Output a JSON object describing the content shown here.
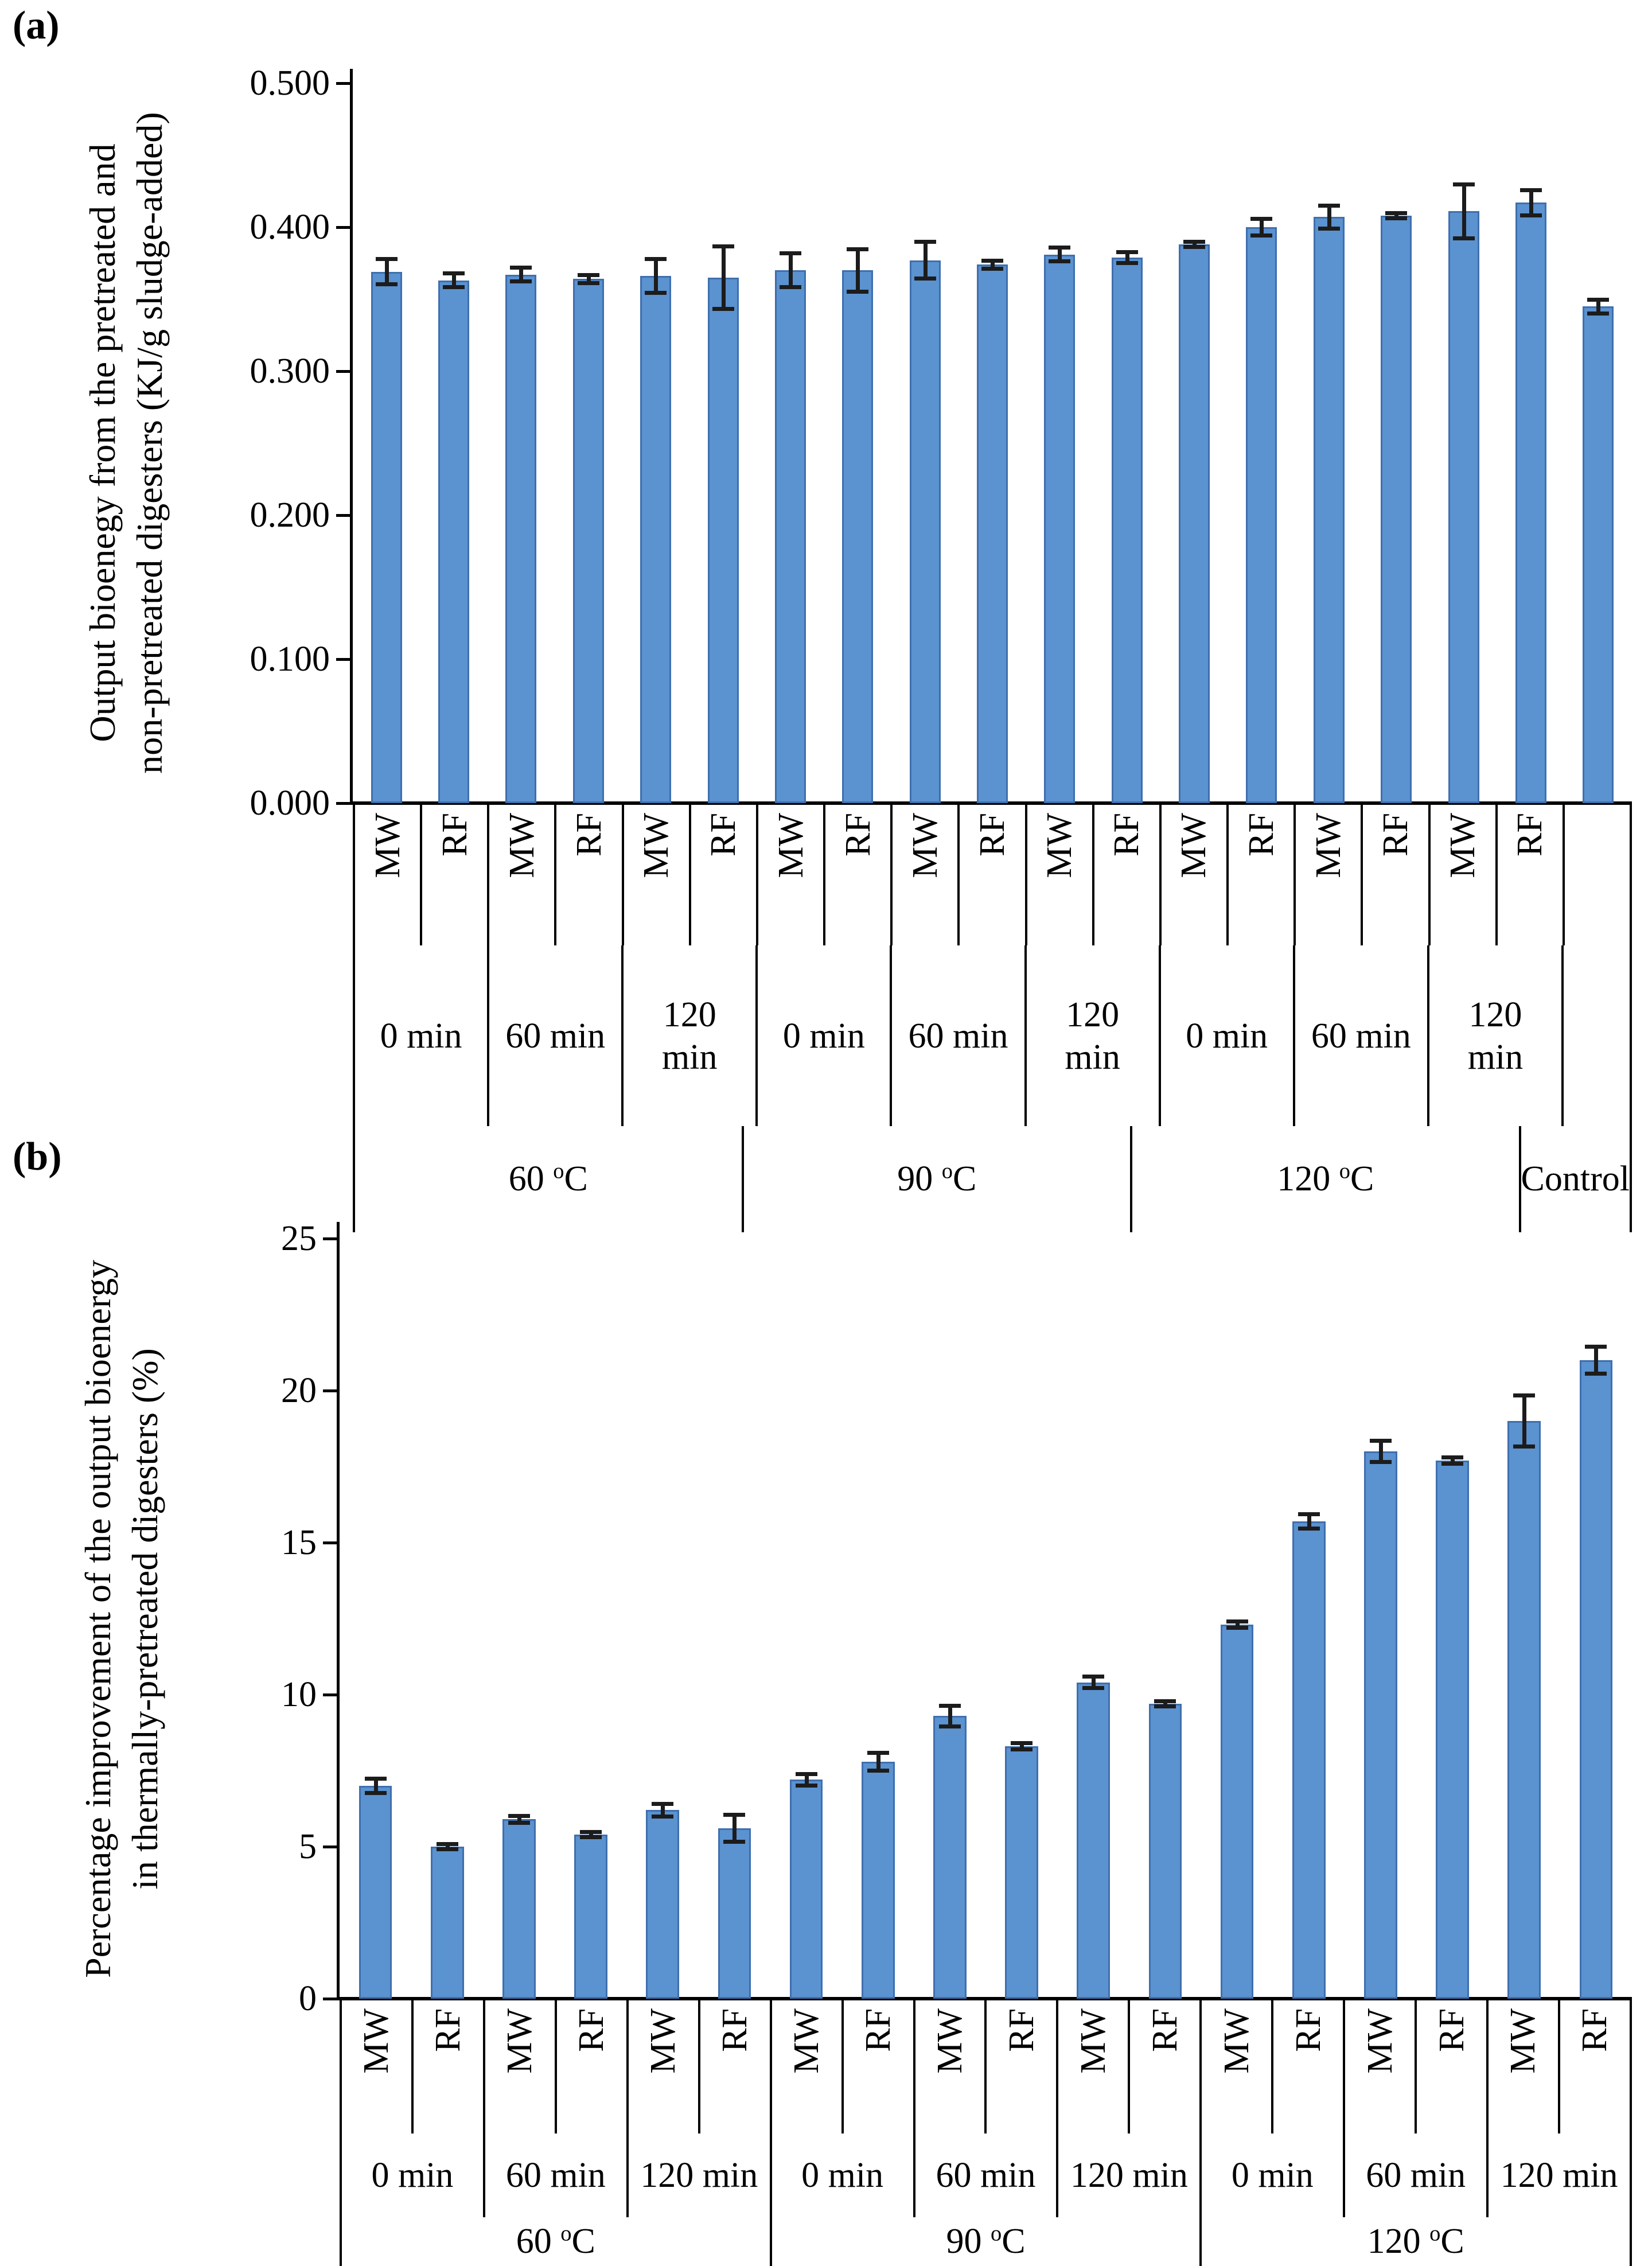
{
  "page": {
    "background": "#ffffff"
  },
  "colors": {
    "bar_fill": "#5b92d0",
    "bar_border": "#3f6fae",
    "axis": "#000000",
    "error_bar": "#1c1c1c",
    "text": "#000000"
  },
  "panel_a": {
    "label": "(a)"
  },
  "panel_b": {
    "label": "(b)"
  },
  "units": {
    "deg_sup": "o",
    "deg_c": "C"
  },
  "chart_data": [
    {
      "id": "a",
      "type": "bar",
      "panel": "(a)",
      "ylabel_lines": [
        "Output bioenegy from the pretreated and",
        "non-pretreated  digesters (KJ/g sludge-added)"
      ],
      "yticks": [
        "0.000",
        "0.100",
        "0.200",
        "0.300",
        "0.400",
        "0.500"
      ],
      "ylim": [
        0,
        0.5
      ],
      "grid": false,
      "legend": false,
      "temps": [
        "60",
        "90",
        "120"
      ],
      "times": [
        "0 min",
        "60 min",
        "120 min"
      ],
      "time_label_lines": [
        [
          "0 min"
        ],
        [
          "60 min"
        ],
        [
          "120",
          "min"
        ]
      ],
      "series_pair": [
        "MW",
        "RF"
      ],
      "control_label": "Control",
      "categories": [
        "60 °C 0 min MW",
        "60 °C 0 min RF",
        "60 °C 60 min MW",
        "60 °C 60 min RF",
        "60 °C 120 min MW",
        "60 °C 120 min RF",
        "90 °C 0 min MW",
        "90 °C 0 min RF",
        "90 °C 60 min MW",
        "90 °C 60 min RF",
        "90 °C 120 min MW",
        "90 °C 120 min RF",
        "120 °C 0 min MW",
        "120 °C 0 min RF",
        "120 °C 60 min MW",
        "120 °C 60 min RF",
        "120 °C 120 min MW",
        "120 °C 120 min RF",
        "Control"
      ],
      "values": [
        0.369,
        0.363,
        0.367,
        0.364,
        0.366,
        0.365,
        0.37,
        0.37,
        0.377,
        0.374,
        0.381,
        0.379,
        0.388,
        0.4,
        0.407,
        0.408,
        0.411,
        0.417,
        0.345
      ],
      "errors": [
        0.009,
        0.005,
        0.005,
        0.003,
        0.012,
        0.022,
        0.012,
        0.015,
        0.013,
        0.003,
        0.005,
        0.004,
        0.002,
        0.006,
        0.008,
        0.002,
        0.019,
        0.009,
        0.005
      ]
    },
    {
      "id": "b",
      "type": "bar",
      "panel": "(b)",
      "ylabel_lines": [
        "Percentage improvement of the output bioenergy",
        "in thermally-pretreated digesters (%)"
      ],
      "yticks": [
        "0",
        "5",
        "10",
        "15",
        "20",
        "25"
      ],
      "ylim": [
        0,
        25
      ],
      "grid": false,
      "legend": false,
      "temps": [
        "60",
        "90",
        "120"
      ],
      "times": [
        "0 min",
        "60 min",
        "120 min"
      ],
      "time_label_lines": [
        [
          "0 min"
        ],
        [
          "60 min"
        ],
        [
          "120 min"
        ]
      ],
      "series_pair": [
        "MW",
        "RF"
      ],
      "categories": [
        "60 °C 0 min MW",
        "60 °C 0 min RF",
        "60 °C 60 min MW",
        "60 °C 60 min RF",
        "60 °C 120 min MW",
        "60 °C 120 min RF",
        "90 °C 0 min MW",
        "90 °C 0 min RF",
        "90 °C 60 min MW",
        "90 °C 60 min RF",
        "90 °C 120 min MW",
        "90 °C 120 min RF",
        "120 °C 0 min MW",
        "120 °C 0 min RF",
        "120 °C 60 min MW",
        "120 °C 60 min RF",
        "120 °C 120 min MW",
        "120 °C 120 min RF"
      ],
      "values": [
        7.0,
        5.0,
        5.9,
        5.4,
        6.2,
        5.6,
        7.2,
        7.8,
        9.3,
        8.3,
        10.4,
        9.7,
        12.3,
        15.7,
        18.0,
        17.7,
        19.0,
        21.0
      ],
      "errors": [
        0.25,
        0.1,
        0.12,
        0.1,
        0.22,
        0.45,
        0.2,
        0.3,
        0.35,
        0.12,
        0.2,
        0.1,
        0.12,
        0.25,
        0.35,
        0.12,
        0.85,
        0.45
      ]
    }
  ]
}
